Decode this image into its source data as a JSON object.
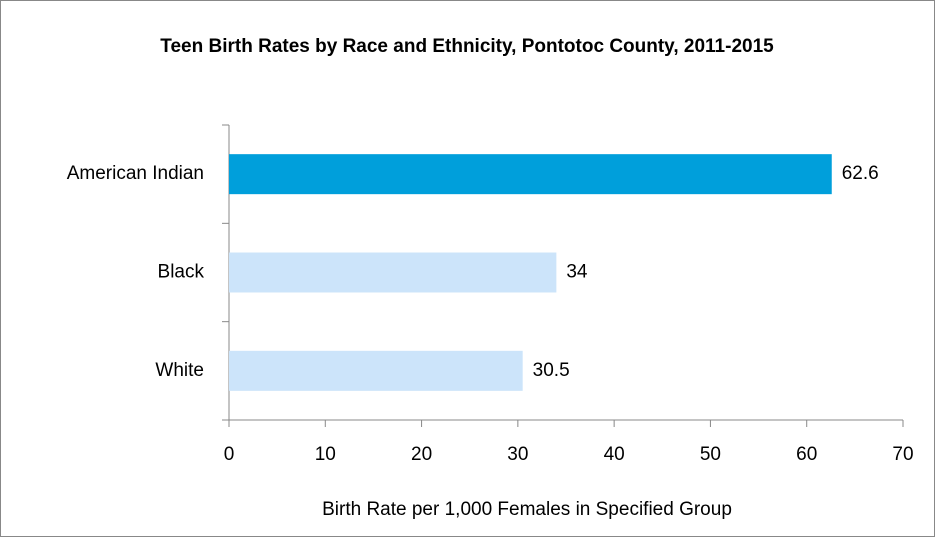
{
  "chart_data": {
    "type": "hbar",
    "title": "Teen Birth Rates by Race and Ethnicity, Pontotoc County, 2011-2015",
    "categories": [
      "American Indian",
      "Black",
      "White"
    ],
    "values": [
      62.6,
      34,
      30.5
    ],
    "colors": [
      "#009fdb",
      "#cce4fa",
      "#cce4fa"
    ],
    "xlabel": "Birth Rate per 1,000 Females in Specified Group",
    "xlim": [
      0,
      70
    ],
    "xticks": [
      0,
      10,
      20,
      30,
      40,
      50,
      60,
      70
    ],
    "grid": false
  }
}
